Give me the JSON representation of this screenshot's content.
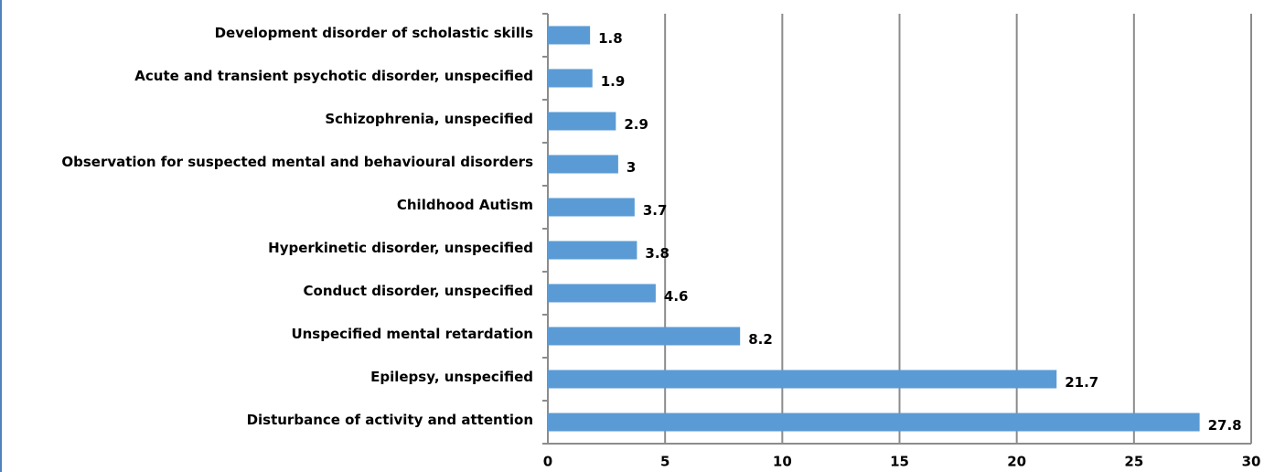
{
  "chart_data": {
    "type": "bar",
    "orientation": "horizontal",
    "categories": [
      "Development disorder of scholastic skills",
      "Acute and transient psychotic disorder, unspecified",
      "Schizophrenia, unspecified",
      "Observation for suspected mental and behavioural disorders",
      "Childhood Autism",
      "Hyperkinetic disorder, unspecified",
      "Conduct disorder, unspecified",
      "Unspecified mental retardation",
      "Epilepsy, unspecified",
      "Disturbance of activity and attention"
    ],
    "values": [
      1.8,
      1.9,
      2.9,
      3,
      3.7,
      3.8,
      4.6,
      8.2,
      21.7,
      27.8
    ],
    "color": "#5b9bd5",
    "xlim": [
      0,
      30
    ],
    "xticks": [
      0,
      5,
      10,
      15,
      20,
      25,
      30
    ],
    "grid": true
  }
}
